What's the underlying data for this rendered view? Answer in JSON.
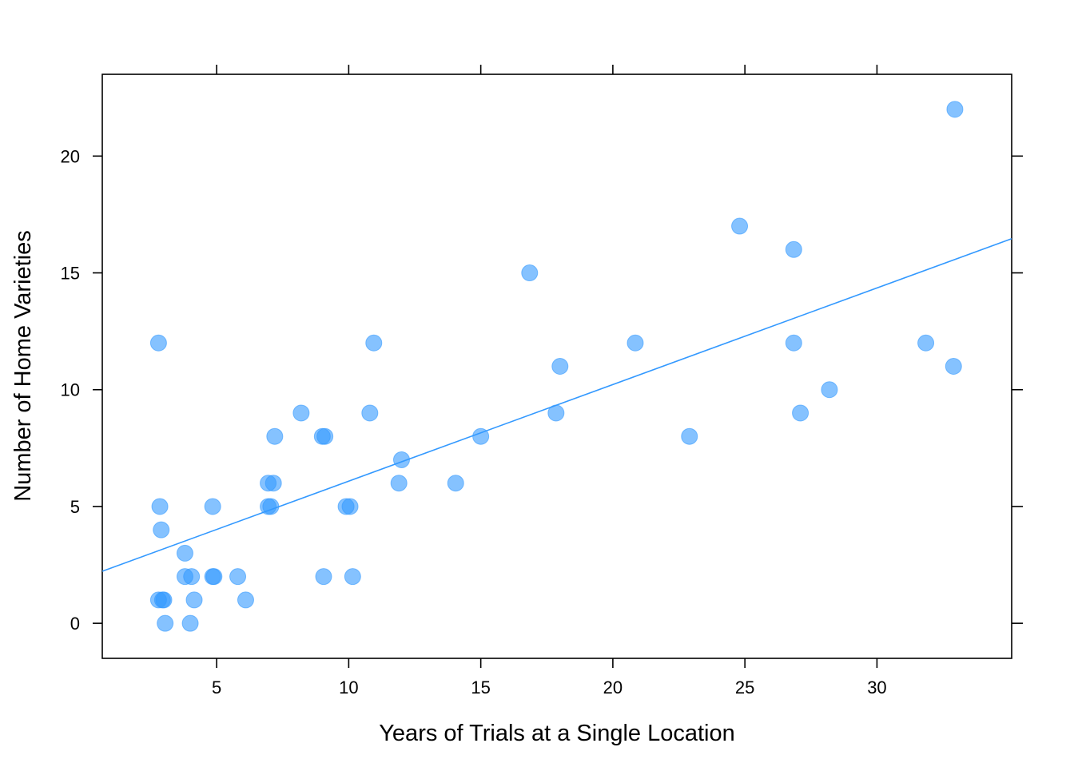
{
  "chart_data": {
    "type": "scatter",
    "title": "",
    "xlabel": "Years of Trials at a Single Location",
    "ylabel": "Number of Home Varieties",
    "xlim": [
      0.67,
      35.1
    ],
    "ylim": [
      -1.5,
      23.5
    ],
    "xticks": [
      "5",
      "10",
      "15",
      "20",
      "25",
      "30"
    ],
    "yticks": [
      "0",
      "5",
      "10",
      "15",
      "20"
    ],
    "grid": false,
    "legend": "none",
    "point_color": "#3399ff",
    "points": [
      {
        "x": 2.8,
        "y": 12
      },
      {
        "x": 2.85,
        "y": 5
      },
      {
        "x": 2.9,
        "y": 4
      },
      {
        "x": 2.8,
        "y": 1
      },
      {
        "x": 2.95,
        "y": 1
      },
      {
        "x": 3.0,
        "y": 1
      },
      {
        "x": 3.05,
        "y": 0
      },
      {
        "x": 3.8,
        "y": 3
      },
      {
        "x": 3.8,
        "y": 2
      },
      {
        "x": 4.05,
        "y": 2
      },
      {
        "x": 4.0,
        "y": 0
      },
      {
        "x": 4.15,
        "y": 1
      },
      {
        "x": 4.85,
        "y": 5
      },
      {
        "x": 4.85,
        "y": 2
      },
      {
        "x": 4.9,
        "y": 2
      },
      {
        "x": 5.8,
        "y": 2
      },
      {
        "x": 6.1,
        "y": 1
      },
      {
        "x": 6.95,
        "y": 6
      },
      {
        "x": 7.15,
        "y": 6
      },
      {
        "x": 6.95,
        "y": 5
      },
      {
        "x": 7.05,
        "y": 5
      },
      {
        "x": 7.2,
        "y": 8
      },
      {
        "x": 8.2,
        "y": 9
      },
      {
        "x": 9.0,
        "y": 8
      },
      {
        "x": 9.1,
        "y": 8
      },
      {
        "x": 9.05,
        "y": 2
      },
      {
        "x": 9.9,
        "y": 5
      },
      {
        "x": 10.05,
        "y": 5
      },
      {
        "x": 10.15,
        "y": 2
      },
      {
        "x": 10.8,
        "y": 9
      },
      {
        "x": 10.95,
        "y": 12
      },
      {
        "x": 11.9,
        "y": 6
      },
      {
        "x": 12.0,
        "y": 7
      },
      {
        "x": 14.05,
        "y": 6
      },
      {
        "x": 15.0,
        "y": 8
      },
      {
        "x": 16.85,
        "y": 15
      },
      {
        "x": 17.85,
        "y": 9
      },
      {
        "x": 18.0,
        "y": 11
      },
      {
        "x": 20.85,
        "y": 12
      },
      {
        "x": 22.9,
        "y": 8
      },
      {
        "x": 24.8,
        "y": 17
      },
      {
        "x": 26.85,
        "y": 16
      },
      {
        "x": 26.85,
        "y": 12
      },
      {
        "x": 27.1,
        "y": 9
      },
      {
        "x": 28.2,
        "y": 10
      },
      {
        "x": 31.85,
        "y": 12
      },
      {
        "x": 32.9,
        "y": 11
      },
      {
        "x": 32.95,
        "y": 22
      }
    ],
    "regression_line": {
      "intercept": 1.95,
      "slope": 0.4135,
      "color": "#3399ff"
    }
  }
}
